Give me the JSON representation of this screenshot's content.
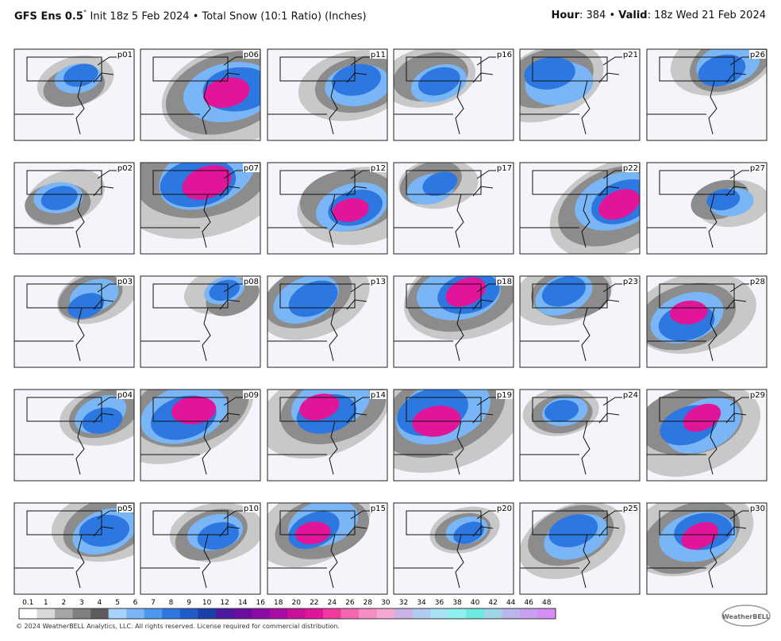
{
  "header": {
    "model": "GFS Ens 0.5",
    "degree": "°",
    "title_rest": " Init 18z 5 Feb 2024 • Total Snow (10:1 Ratio) (Inches)",
    "hour_label": "Hour",
    "hour_value": ": 384 • ",
    "valid_label": "Valid",
    "valid_value": ": 18z Wed 21 Feb 2024"
  },
  "panels": [
    "p01",
    "p02",
    "p03",
    "p04",
    "p05",
    "p06",
    "p07",
    "p08",
    "p09",
    "p10",
    "p11",
    "p12",
    "p13",
    "p14",
    "p15",
    "p16",
    "p17",
    "p18",
    "p19",
    "p20",
    "p21",
    "p22",
    "p23",
    "p24",
    "p25",
    "p26",
    "p27",
    "p28",
    "p29",
    "p30"
  ],
  "colorbar": {
    "ticks": [
      0.1,
      1,
      2,
      3,
      4,
      5,
      6,
      7,
      8,
      9,
      10,
      12,
      14,
      16,
      18,
      20,
      22,
      24,
      26,
      28,
      30,
      32,
      34,
      36,
      38,
      40,
      42,
      44,
      46,
      48
    ],
    "colors": [
      "#ffffff",
      "#d9d9d9",
      "#a6a6a6",
      "#7f7f7f",
      "#5c5c5c",
      "#a9d3ff",
      "#7ab6f5",
      "#4d97ee",
      "#2d78e0",
      "#1f5cc8",
      "#1840a8",
      "#4b1a9e",
      "#6a0d9e",
      "#8a0aa5",
      "#a80ca3",
      "#c8109d",
      "#e0159a",
      "#f0389f",
      "#f565b0",
      "#f58cc4",
      "#f5a9d3",
      "#c9b3e6",
      "#b0cdf0",
      "#a5e3f5",
      "#8ff0f0",
      "#6ee8e0",
      "#9fd6e8",
      "#b9b6ee",
      "#c9a0f0",
      "#d48ef5"
    ]
  },
  "footer": {
    "copyright": "© 2024 WeatherBELL Analytics, LLC. All rights reserved. License required for commercial distribution.",
    "logo": "WeatherBELL"
  }
}
